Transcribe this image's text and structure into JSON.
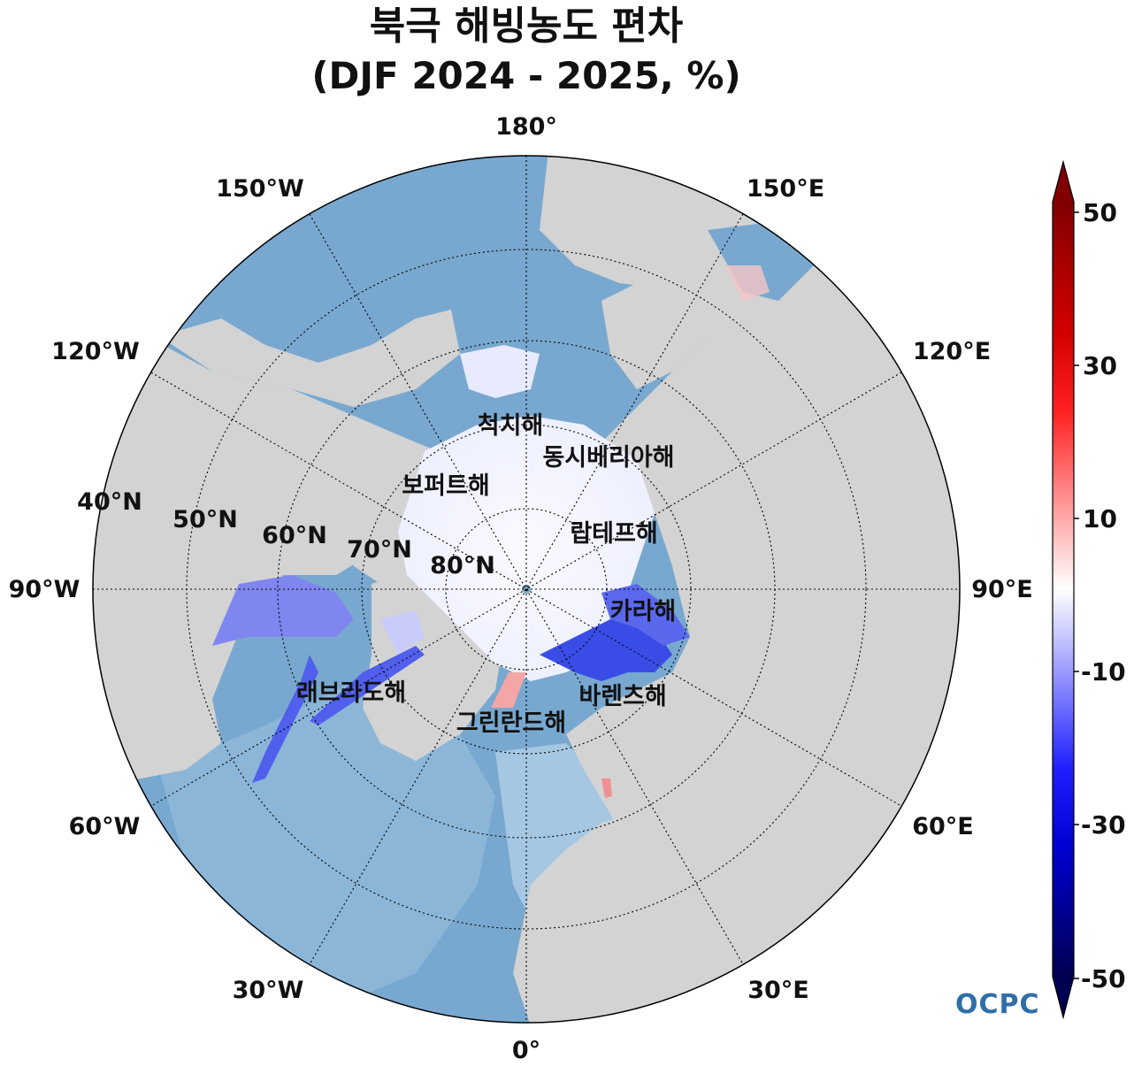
{
  "title": {
    "line1": "북극 해빙농도 편차",
    "line2": "(DJF 2024 - 2025, %)"
  },
  "map": {
    "projection": "north-polar-stereographic",
    "longitude_labels": {
      "lon_0": "0°",
      "lon_30e": "30°E",
      "lon_60e": "60°E",
      "lon_90e": "90°E",
      "lon_120e": "120°E",
      "lon_150e": "150°E",
      "lon_180": "180°",
      "lon_150w": "150°W",
      "lon_120w": "120°W",
      "lon_90w": "90°W",
      "lon_60w": "60°W",
      "lon_30w": "30°W"
    },
    "latitude_labels": {
      "lat_40": "40°N",
      "lat_50": "50°N",
      "lat_60": "60°N",
      "lat_70": "70°N",
      "lat_80": "80°N"
    },
    "sea_labels": {
      "chukchi": "척치해",
      "east_siberian": "동시베리아해",
      "beaufort": "보퍼트해",
      "laptev": "랍테프해",
      "kara": "카라해",
      "barents": "바렌츠해",
      "labrador": "래브라도해",
      "greenland": "그린란드해"
    },
    "colors": {
      "ocean": "#78a8cf",
      "land": "#d3d3d3",
      "sea_ice": "#f5f5ff",
      "negative_anomaly": "#4a5fe8",
      "positive_anomaly": "#f4a6a6"
    }
  },
  "colorbar": {
    "ticks": [
      "50",
      "30",
      "10",
      "-10",
      "-30",
      "-50"
    ],
    "min": -50,
    "max": 50,
    "extend": "both",
    "cmap": "seismic"
  },
  "logo": {
    "text": "OCPC"
  }
}
